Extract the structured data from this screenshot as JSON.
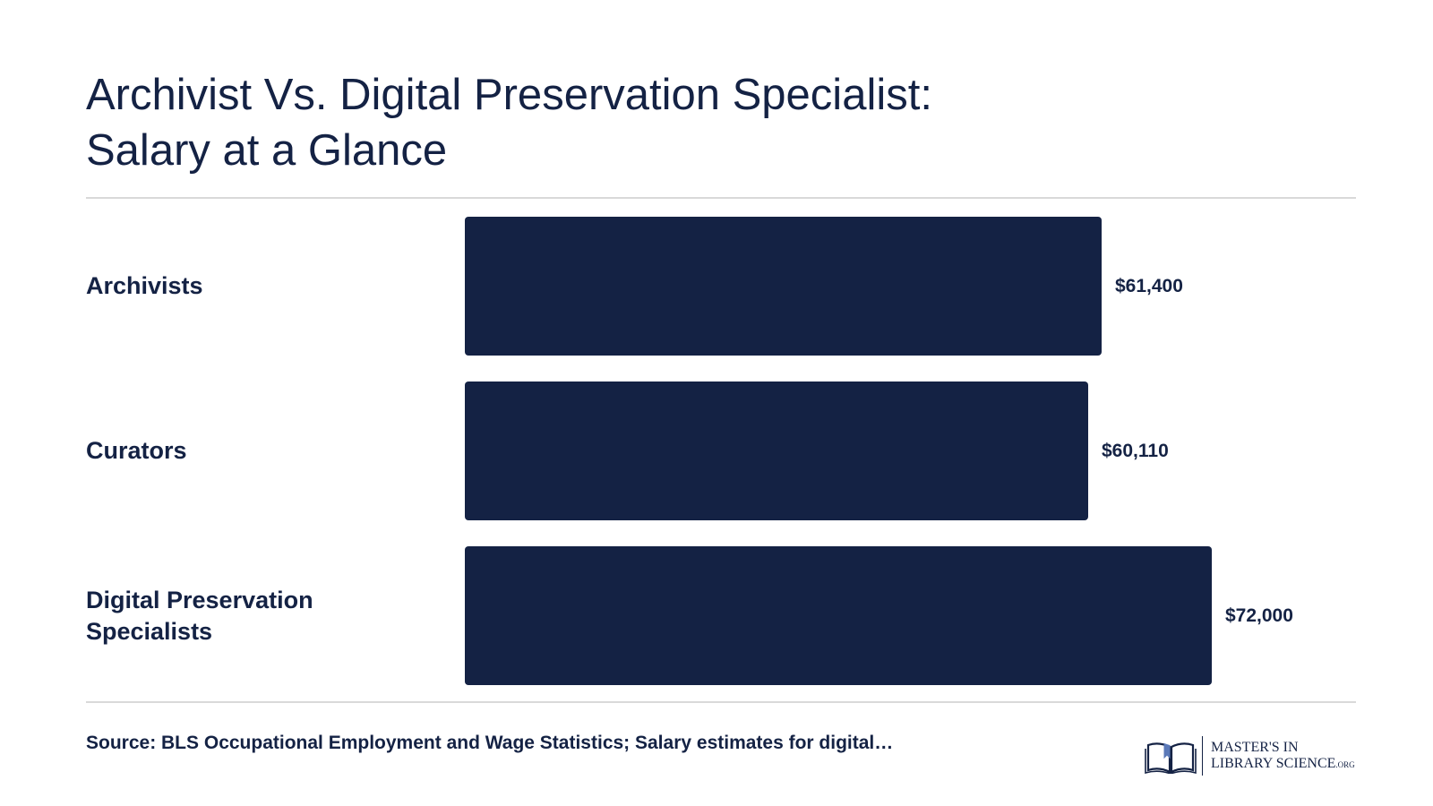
{
  "title_lines": [
    "Archivist Vs. Digital Preservation Specialist:",
    "Salary at a Glance"
  ],
  "source": "Source: BLS Occupational Employment and Wage Statistics; Salary estimates for digital…",
  "logo": {
    "line1": "MASTER'S IN",
    "line2": "LIBRARY SCIENCE",
    "suffix": ".ORG",
    "icon": "open-book-icon"
  },
  "colors": {
    "bar": "#142244",
    "text": "#142244",
    "rule": "#d9d9d9"
  },
  "chart_data": {
    "type": "bar",
    "orientation": "horizontal",
    "title": "Archivist Vs. Digital Preservation Specialist: Salary at a Glance",
    "categories": [
      "Archivists",
      "Curators",
      "Digital Preservation Specialists"
    ],
    "category_display_lines": [
      [
        "Archivists"
      ],
      [
        "Curators"
      ],
      [
        "Digital Preservation",
        "Specialists"
      ]
    ],
    "values": [
      61400,
      60110,
      72000
    ],
    "value_labels": [
      "$61,400",
      "$60,110",
      "$72,000"
    ],
    "xlim": [
      0,
      72000
    ],
    "grid": false,
    "legend": "none"
  }
}
